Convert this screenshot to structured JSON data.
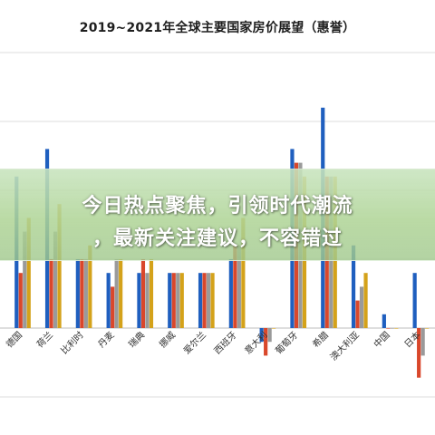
{
  "chart_data": {
    "type": "bar",
    "title": "2019~2021年全球主要国家房价展望（惠誉）",
    "categories": [
      "德国",
      "荷兰",
      "比利时",
      "丹麦",
      "瑞典",
      "挪威",
      "爱尔兰",
      "西班牙",
      "意大利",
      "葡萄牙",
      "希腊",
      "澳大利亚",
      "中国",
      "日本"
    ],
    "series": [
      {
        "color": "#1f5fbf",
        "values": [
          5.5,
          6.5,
          2.5,
          2.0,
          2.0,
          2.0,
          2.0,
          2.5,
          -0.5,
          6.5,
          8.0,
          3.0,
          0.5,
          2.0
        ]
      },
      {
        "color": "#d9472b",
        "values": [
          2.0,
          2.5,
          2.5,
          1.5,
          2.5,
          2.0,
          2.0,
          3.0,
          -1.0,
          6.0,
          5.5,
          1.0,
          0.0,
          -1.8
        ]
      },
      {
        "color": "#9a9a9a",
        "values": [
          3.5,
          3.5,
          2.5,
          2.5,
          2.0,
          2.0,
          2.0,
          3.0,
          -0.5,
          6.0,
          5.5,
          1.5,
          0.0,
          -1.0
        ]
      },
      {
        "color": "#d4a21a",
        "values": [
          4.0,
          4.5,
          3.0,
          2.5,
          2.5,
          2.0,
          2.0,
          4.0,
          0.0,
          5.5,
          5.5,
          2.0,
          0.0,
          0.0
        ]
      }
    ],
    "ylim": [
      -2.5,
      10
    ],
    "grid": true
  },
  "banner": {
    "line1": "今日热点聚焦，引领时代潮流",
    "line2": "，最新关注建议，不容错过"
  }
}
